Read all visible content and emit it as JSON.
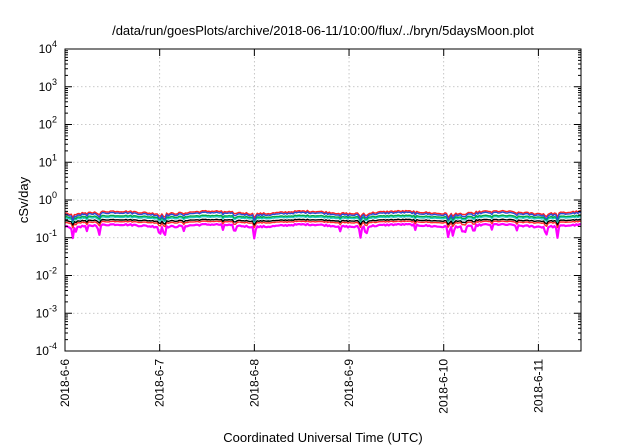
{
  "chart_data": {
    "type": "line",
    "title": "/data/run/goesPlots/archive/2018-06-11/10:00/flux/../bryn/5daysMoon.plot",
    "xlabel": "Coordinated Universal Time (UTC)",
    "ylabel": "cSv/day",
    "x_ticks": [
      "2018-6-6",
      "2018-6-7",
      "2018-6-8",
      "2018-6-9",
      "2018-6-10",
      "2018-6-11"
    ],
    "x_range_days": [
      0,
      5.45
    ],
    "yscale": "log",
    "ylim": [
      0.0001,
      10000
    ],
    "y_ticks": [
      {
        "base": "10",
        "exp": "-4",
        "value": 0.0001
      },
      {
        "base": "10",
        "exp": "-3",
        "value": 0.001
      },
      {
        "base": "10",
        "exp": "-2",
        "value": 0.01
      },
      {
        "base": "10",
        "exp": "-1",
        "value": 0.1
      },
      {
        "base": "10",
        "exp": "0",
        "value": 1
      },
      {
        "base": "10",
        "exp": "1",
        "value": 10
      },
      {
        "base": "10",
        "exp": "2",
        "value": 100
      },
      {
        "base": "10",
        "exp": "3",
        "value": 1000
      },
      {
        "base": "10",
        "exp": "4",
        "value": 10000
      }
    ],
    "grid": true,
    "series": [
      {
        "color": "#ff00ff",
        "level": 0.21,
        "amp": 0.13,
        "dip": 0.5
      },
      {
        "color": "#ff2a2a",
        "level": 0.26,
        "amp": 0.08,
        "dip": 0.25
      },
      {
        "color": "#000000",
        "level": 0.29,
        "amp": 0.08,
        "dip": 0.2
      },
      {
        "color": "#22c9c9",
        "level": 0.34,
        "amp": 0.09,
        "dip": 0.2
      },
      {
        "color": "#00aa44",
        "level": 0.37,
        "amp": 0.09,
        "dip": 0.2
      },
      {
        "color": "#ff2020",
        "level": 0.47,
        "amp": 0.14,
        "dip": 0.2
      },
      {
        "color": "#2a4bd7",
        "level": 0.43,
        "amp": 0.14,
        "dip": 0.25
      }
    ]
  }
}
